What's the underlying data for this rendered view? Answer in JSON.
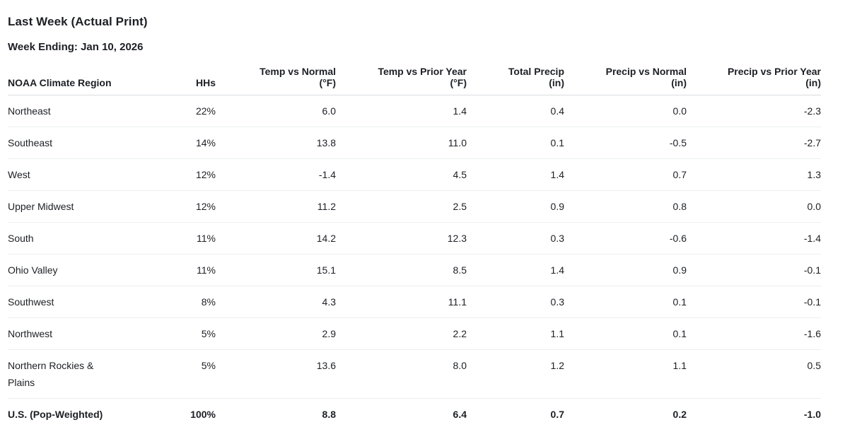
{
  "page": {
    "title": "Last Week (Actual Print)",
    "subtitle": "Week Ending: Jan 10, 2026"
  },
  "style": {
    "text_color": "#1c1f24",
    "header_border_color": "#d9dcdf",
    "row_border_color": "#eceef0",
    "background_color": "#ffffff"
  },
  "chart_data": {
    "type": "table",
    "title": "Last Week (Actual Print)",
    "subtitle": "Week Ending: Jan 10, 2026",
    "columns": [
      {
        "key": "region",
        "label": "NOAA Climate Region",
        "unit": "",
        "align": "left"
      },
      {
        "key": "hhs",
        "label": "HHs",
        "unit": "",
        "align": "right"
      },
      {
        "key": "temp_vs_normal",
        "label": "Temp vs Normal",
        "unit": "(°F)",
        "align": "right"
      },
      {
        "key": "temp_vs_prior_year",
        "label": "Temp vs Prior Year",
        "unit": "(°F)",
        "align": "right"
      },
      {
        "key": "total_precip",
        "label": "Total Precip",
        "unit": "(in)",
        "align": "right"
      },
      {
        "key": "precip_vs_normal",
        "label": "Precip vs Normal",
        "unit": "(in)",
        "align": "right"
      },
      {
        "key": "precip_vs_prior_year",
        "label": "Precip vs Prior Year",
        "unit": "(in)",
        "align": "right"
      }
    ],
    "rows": [
      {
        "region": "Northeast",
        "values": [
          "22%",
          "6.0",
          "1.4",
          "0.4",
          "0.0",
          "-2.3"
        ],
        "bold": false
      },
      {
        "region": "Southeast",
        "values": [
          "14%",
          "13.8",
          "11.0",
          "0.1",
          "-0.5",
          "-2.7"
        ],
        "bold": false
      },
      {
        "region": "West",
        "values": [
          "12%",
          "-1.4",
          "4.5",
          "1.4",
          "0.7",
          "1.3"
        ],
        "bold": false
      },
      {
        "region": "Upper Midwest",
        "values": [
          "12%",
          "11.2",
          "2.5",
          "0.9",
          "0.8",
          "0.0"
        ],
        "bold": false
      },
      {
        "region": "South",
        "values": [
          "11%",
          "14.2",
          "12.3",
          "0.3",
          "-0.6",
          "-1.4"
        ],
        "bold": false
      },
      {
        "region": "Ohio Valley",
        "values": [
          "11%",
          "15.1",
          "8.5",
          "1.4",
          "0.9",
          "-0.1"
        ],
        "bold": false
      },
      {
        "region": "Southwest",
        "values": [
          "8%",
          "4.3",
          "11.1",
          "0.3",
          "0.1",
          "-0.1"
        ],
        "bold": false
      },
      {
        "region": "Northwest",
        "values": [
          "5%",
          "2.9",
          "2.2",
          "1.1",
          "0.1",
          "-1.6"
        ],
        "bold": false
      },
      {
        "region": "Northern Rockies & Plains",
        "values": [
          "5%",
          "13.6",
          "8.0",
          "1.2",
          "1.1",
          "0.5"
        ],
        "bold": false
      },
      {
        "region": "U.S. (Pop-Weighted)",
        "values": [
          "100%",
          "8.8",
          "6.4",
          "0.7",
          "0.2",
          "-1.0"
        ],
        "bold": true
      }
    ]
  }
}
